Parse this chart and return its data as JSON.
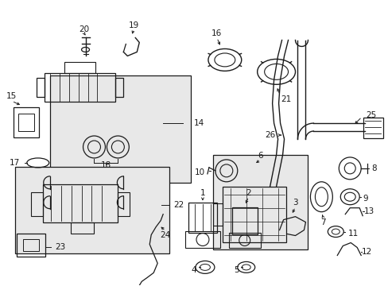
{
  "bg_color": "#ffffff",
  "line_color": "#1a1a1a",
  "box_fill": "#e8e8e8",
  "label_fontsize": 7.5,
  "figsize": [
    4.89,
    3.6
  ],
  "dpi": 100
}
